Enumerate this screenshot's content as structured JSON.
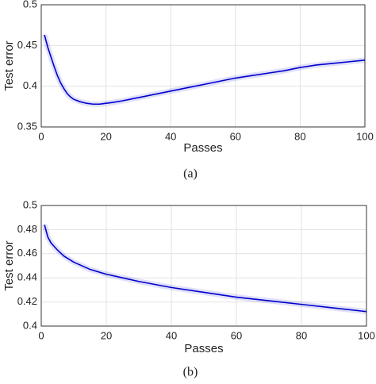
{
  "chart_data": [
    {
      "type": "line",
      "x_label": "Passes",
      "y_label": "Test error",
      "caption": "(a)",
      "xlim": [
        0,
        100
      ],
      "xticks": [
        0,
        20,
        40,
        60,
        80,
        100
      ],
      "ylim": [
        0.35,
        0.5
      ],
      "yticks": [
        0.35,
        0.4,
        0.45,
        0.5
      ],
      "grid": true,
      "x": [
        1,
        2,
        3,
        4,
        5,
        6,
        7,
        8,
        9,
        10,
        12,
        14,
        16,
        18,
        20,
        22,
        25,
        30,
        35,
        40,
        45,
        50,
        55,
        60,
        65,
        70,
        75,
        80,
        85,
        90,
        95,
        100
      ],
      "series": [
        {
          "color": "#0000cc",
          "values": [
            0.463,
            0.448,
            0.436,
            0.424,
            0.413,
            0.404,
            0.397,
            0.391,
            0.387,
            0.384,
            0.381,
            0.379,
            0.378,
            0.378,
            0.379,
            0.38,
            0.382,
            0.386,
            0.39,
            0.394,
            0.398,
            0.402,
            0.406,
            0.41,
            0.413,
            0.416,
            0.419,
            0.423,
            0.426,
            0.428,
            0.43,
            0.432
          ]
        }
      ]
    },
    {
      "type": "line",
      "x_label": "Passes",
      "y_label": "Test error",
      "caption": "(b)",
      "xlim": [
        0,
        100
      ],
      "xticks": [
        0,
        20,
        40,
        60,
        80,
        100
      ],
      "ylim": [
        0.4,
        0.5
      ],
      "yticks": [
        0.4,
        0.42,
        0.44,
        0.46,
        0.48,
        0.5
      ],
      "grid": true,
      "x": [
        1,
        2,
        3,
        5,
        7,
        10,
        15,
        20,
        25,
        30,
        40,
        50,
        60,
        70,
        80,
        90,
        100
      ],
      "series": [
        {
          "color": "#0000cc",
          "values": [
            0.484,
            0.474,
            0.469,
            0.463,
            0.458,
            0.453,
            0.447,
            0.443,
            0.44,
            0.437,
            0.432,
            0.428,
            0.424,
            0.421,
            0.418,
            0.415,
            0.412
          ]
        }
      ]
    }
  ]
}
